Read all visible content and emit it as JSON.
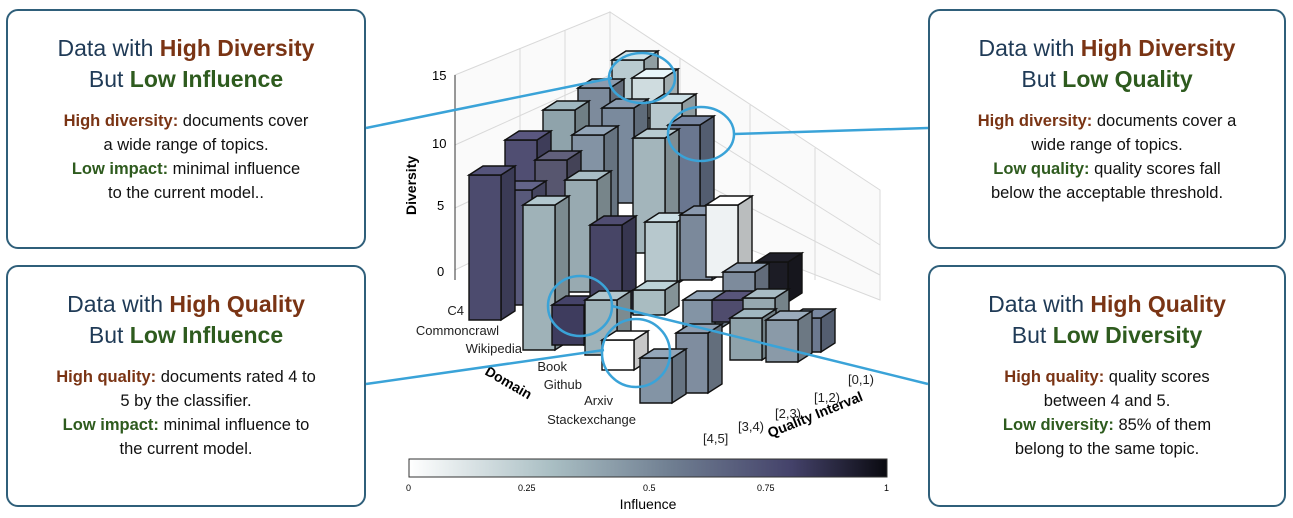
{
  "cards": {
    "top_left": {
      "title_prefix": "Data with ",
      "title_highlight1": "High Diversity",
      "title_mid": "But ",
      "title_highlight2": "Low Influence",
      "line1_key": "High diversity:",
      "line1_text": " documents cover",
      "line2_text": "a wide range of topics.",
      "line3_key": "Low impact:",
      "line3_text": " minimal influence",
      "line4_text": "to the current model.."
    },
    "bottom_left": {
      "title_prefix": "Data with ",
      "title_highlight1": "High Quality",
      "title_mid": "But ",
      "title_highlight2": "Low Influence",
      "line1_key": "High quality:",
      "line1_text": " documents rated 4 to",
      "line2_text": "5 by the classifier.",
      "line3_key": "Low impact:",
      "line3_text": " minimal influence to",
      "line4_text": "the current model."
    },
    "top_right": {
      "title_prefix": "Data with ",
      "title_highlight1": "High Diversity",
      "title_mid": "But ",
      "title_highlight2": "Low Quality",
      "line1_key": "High diversity:",
      "line1_text": " documents cover a",
      "line2_text": "wide range of topics.",
      "line3_key": "Low quality:",
      "line3_text": " quality scores fall",
      "line4_text": "below the acceptable threshold."
    },
    "bottom_right": {
      "title_prefix": "Data with ",
      "title_highlight1": "High Quality",
      "title_mid": "But ",
      "title_highlight2": "Low Diversity",
      "line1_key": "High quality:",
      "line1_text": " quality scores",
      "line2_text": "between 4 and 5.",
      "line3_key": "Low diversity:",
      "line3_text": " 85% of them",
      "line4_text": "belong to the same topic."
    }
  },
  "chart": {
    "z_label": "Diversity",
    "z_ticks": [
      "15",
      "10",
      "5",
      "0"
    ],
    "domain_label": "Domain",
    "domains": [
      "C4",
      "Commoncrawl",
      "Wikipedia",
      "Book",
      "Github",
      "Arxiv",
      "Stackexchange"
    ],
    "quality_label": "Quality Interval",
    "quality_ticks": [
      "[0,1)",
      "[1,2)",
      "[2,3)",
      "[3,4)",
      "[4,5]"
    ],
    "colorbar_label": "Influence",
    "colorbar_ticks": [
      "0",
      "0.25",
      "0.5",
      "0.75",
      "1"
    ],
    "colors": {
      "low": "#ffffff",
      "mid": "#8fa3ab",
      "high": "#111118",
      "callout": "#3aa3d8"
    }
  }
}
